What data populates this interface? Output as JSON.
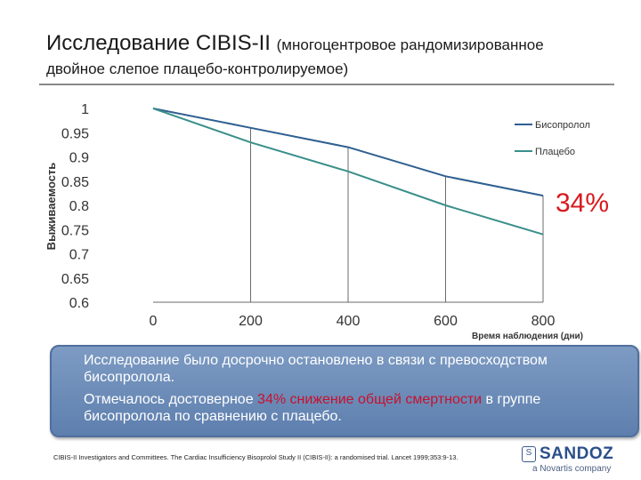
{
  "header": {
    "title_main": "Исследование CIBIS-II",
    "title_sub1": "(многоцентровое рандомизированное",
    "title_sub2": "двойное слепое плацебо-контролируемое)"
  },
  "chart_data": {
    "type": "line",
    "x": [
      0,
      200,
      400,
      600,
      800
    ],
    "series": [
      {
        "name": "Бисопролол",
        "values": [
          1.0,
          0.96,
          0.92,
          0.86,
          0.82
        ],
        "color": "#2f5f90"
      },
      {
        "name": "Плацебо",
        "values": [
          1.0,
          0.93,
          0.87,
          0.8,
          0.74
        ],
        "color": "#3a8f8a"
      }
    ],
    "xlabel": "Время наблюдения (дни)",
    "ylabel": "Выживаемость",
    "xlim": [
      0,
      800
    ],
    "ylim": [
      0.6,
      1.0
    ],
    "yticks": [
      "1",
      "0.95",
      "0.9",
      "0.85",
      "0.8",
      "0.75",
      "0.7",
      "0.65",
      "0.6"
    ],
    "xticks": [
      "0",
      "200",
      "400",
      "600",
      "800"
    ],
    "grid": true,
    "legend_position": "top-right",
    "annotation": "34%"
  },
  "info": {
    "para1": "Исследование было досрочно остановлено в связи с превосходством бисопролола.",
    "para2_before": "Отмечалось достоверное ",
    "para2_highlight": "34% снижение общей смертности",
    "para2_after": " в группе бисопролола по сравнению с плацебо."
  },
  "footnote": "CIBIS-II Investigators and Committees. The Cardiac Insufficiency Bisoprolol Study II (CIBIS-II): a randomised trial. Lancet 1999;353:9-13.",
  "logo": {
    "mark": "S",
    "brand": "SANDOZ",
    "tagline": "a Novartis company"
  },
  "colors": {
    "accent_red": "#d9181f",
    "box_blue": "#6d8cbb"
  }
}
